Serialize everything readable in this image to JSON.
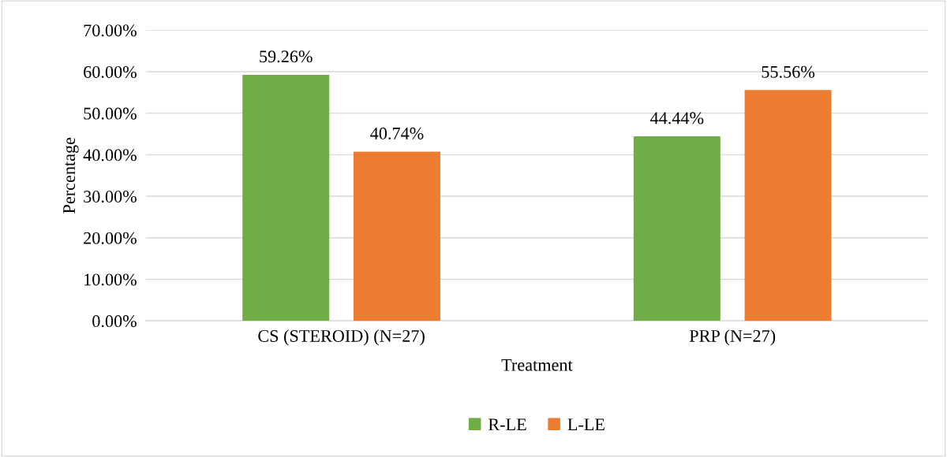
{
  "chart_data": {
    "type": "bar",
    "xlabel": "Treatment",
    "ylabel": "Percentage",
    "categories": [
      "CS (STEROID) (N=27)",
      "PRP (N=27)"
    ],
    "series": [
      {
        "name": "R-LE",
        "color": "#70ad47",
        "values": [
          59.26,
          44.44
        ],
        "value_labels": [
          "59.26%",
          "44.44%"
        ]
      },
      {
        "name": "L-LE",
        "color": "#ed7d31",
        "values": [
          40.74,
          55.56
        ],
        "value_labels": [
          "40.74%",
          "55.56%"
        ]
      }
    ],
    "ylim": [
      0,
      70
    ],
    "yticks": [
      {
        "value": 0,
        "label": "0.00%"
      },
      {
        "value": 10,
        "label": "10.00%"
      },
      {
        "value": 20,
        "label": "20.00%"
      },
      {
        "value": 30,
        "label": "30.00%"
      },
      {
        "value": 40,
        "label": "40.00%"
      },
      {
        "value": 50,
        "label": "50.00%"
      },
      {
        "value": 60,
        "label": "60.00%"
      },
      {
        "value": 70,
        "label": "70.00%"
      }
    ],
    "grid": "y",
    "legend": "bottom"
  }
}
